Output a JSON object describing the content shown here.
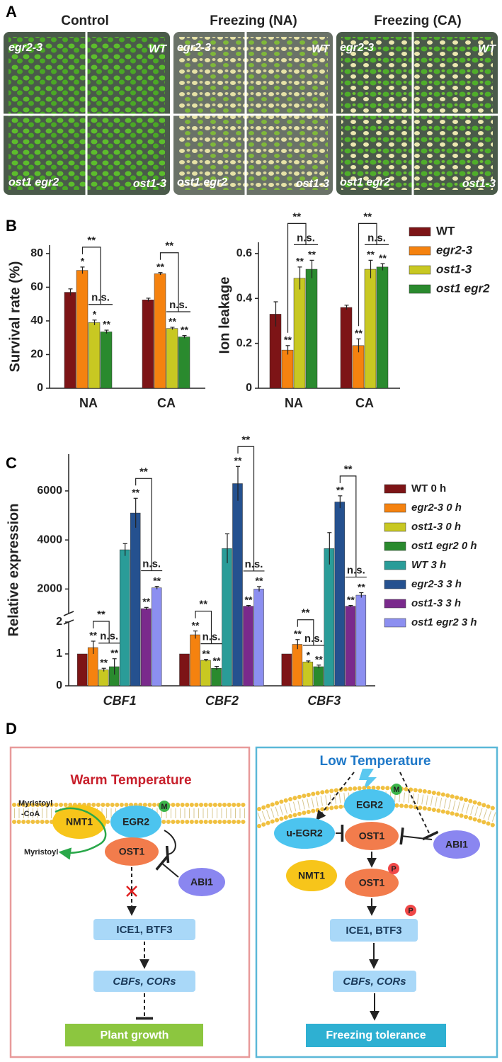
{
  "panel_labels": [
    "A",
    "B",
    "C",
    "D"
  ],
  "panel_a": {
    "columns": [
      "Control",
      "Freezing (NA)",
      "Freezing (CA)"
    ],
    "genotypes": [
      "egr2-3",
      "WT",
      "ost1 egr2",
      "ost1-3"
    ]
  },
  "chart_data": [
    {
      "type": "bar",
      "y_label": "Survival rate (%)",
      "categories": [
        "NA",
        "CA"
      ],
      "ylim": [
        0,
        85
      ],
      "yticks": [
        0,
        20,
        40,
        60,
        80
      ],
      "legend": "right",
      "series": [
        {
          "name": "WT",
          "color": "#7d1416",
          "values": [
            57,
            52.5
          ],
          "errors": [
            2,
            1
          ]
        },
        {
          "name": "egr2-3",
          "color": "#f5820f",
          "values": [
            70,
            68
          ],
          "errors": [
            2,
            0.7
          ],
          "significance": [
            "*",
            "**"
          ]
        },
        {
          "name": "ost1-3",
          "color": "#c8c822",
          "values": [
            39,
            35.5
          ],
          "errors": [
            1.5,
            0.7
          ],
          "significance": [
            "*",
            "**"
          ]
        },
        {
          "name": "ost1 egr2",
          "color": "#2a8a2e",
          "values": [
            33.5,
            30.5
          ],
          "errors": [
            1,
            0.8
          ],
          "significance": [
            "**",
            "**"
          ]
        }
      ],
      "brackets": [
        [
          "**",
          "n.s."
        ],
        [
          "**",
          "n.s."
        ]
      ]
    },
    {
      "type": "bar",
      "y_label": "Ion leakage",
      "categories": [
        "NA",
        "CA"
      ],
      "ylim": [
        0,
        0.65
      ],
      "yticks": [
        0,
        0.2,
        0.4,
        0.6
      ],
      "series": [
        {
          "color": "#7d1416",
          "values": [
            0.33,
            0.36
          ],
          "errors": [
            0.055,
            0.01
          ]
        },
        {
          "color": "#f5820f",
          "values": [
            0.17,
            0.19
          ],
          "errors": [
            0.02,
            0.03
          ],
          "significance": [
            "**",
            "**"
          ]
        },
        {
          "color": "#c8c822",
          "values": [
            0.49,
            0.53
          ],
          "errors": [
            0.05,
            0.04
          ],
          "significance": [
            "**",
            "**"
          ]
        },
        {
          "color": "#2a8a2e",
          "values": [
            0.53,
            0.54
          ],
          "errors": [
            0.04,
            0.015
          ],
          "significance": [
            "**",
            "**"
          ]
        }
      ],
      "brackets": [
        [
          "**",
          "n.s."
        ],
        [
          "**",
          "n.s."
        ]
      ]
    },
    {
      "type": "bar",
      "y_label": "Relative expression",
      "categories": [
        "CBF1",
        "CBF2",
        "CBF3"
      ],
      "ylim": [
        0,
        2
      ],
      "yticks": [
        0,
        1,
        2
      ],
      "ylim_upper": [
        1000,
        7500
      ],
      "yticks_upper": [
        2000,
        4000,
        6000
      ],
      "legend": "right",
      "series": [
        {
          "name": "WT 0 h",
          "color": "#7d1416",
          "values": [
            1,
            1,
            1
          ]
        },
        {
          "name": "egr2-3 0 h",
          "color": "#f5820f",
          "values": [
            1.2,
            1.6,
            1.3
          ],
          "errors": [
            0.2,
            0.12,
            0.15
          ],
          "significance": [
            "**",
            "**",
            "**"
          ]
        },
        {
          "name": "ost1-3 0 h",
          "color": "#c8c822",
          "values": [
            0.5,
            0.8,
            0.75
          ],
          "errors": [
            0.05,
            0.03,
            0.03
          ],
          "significance": [
            "**",
            "**",
            "*"
          ]
        },
        {
          "name": "ost1 egr2 0 h",
          "color": "#2a8a2e",
          "values": [
            0.6,
            0.55,
            0.6
          ],
          "errors": [
            0.25,
            0.06,
            0.05
          ],
          "significance": [
            "**",
            "**",
            "**"
          ]
        },
        {
          "name": "WT 3 h",
          "color": "#2a9c98",
          "values": [
            3600,
            3650,
            3650
          ],
          "errors": [
            250,
            600,
            650
          ]
        },
        {
          "name": "egr2-3 3 h",
          "color": "#25518f",
          "values": [
            5100,
            6300,
            5550
          ],
          "errors": [
            600,
            700,
            250
          ],
          "significance": [
            "**",
            "**",
            "**"
          ]
        },
        {
          "name": "ost1-3 3 h",
          "color": "#7a2a8c",
          "values": [
            1200,
            1300,
            1300
          ],
          "errors": [
            50,
            30,
            30
          ],
          "significance": [
            "**",
            "**",
            "**"
          ]
        },
        {
          "name": "ost1 egr2 3 h",
          "color": "#8c8ff0",
          "values": [
            2050,
            2000,
            1750
          ],
          "errors": [
            60,
            100,
            100
          ],
          "significance": [
            "**",
            "**",
            "**"
          ]
        }
      ],
      "brackets": [
        [
          "**",
          "n.s.",
          "**",
          "n.s."
        ],
        [
          "**",
          "n.s.",
          "**",
          "n.s."
        ],
        [
          "**",
          "n.s.",
          "**",
          "n.s."
        ]
      ]
    }
  ],
  "panel_d": {
    "left": {
      "title": "Warm Temperature",
      "myristoyl_coa": [
        "Myristoyl",
        "-CoA"
      ],
      "nmt1": "NMT1",
      "egr2": "EGR2",
      "m": "M",
      "myristoyl": "Myristoyl",
      "ost1": "OST1",
      "abi1": "ABI1",
      "ice1": "ICE1, BTF3",
      "cbfs": "CBFs, CORs",
      "outcome": "Plant growth"
    },
    "right": {
      "title": "Low Temperature",
      "egr2": "EGR2",
      "m": "M",
      "u_egr2": "u-EGR2",
      "ost1": "OST1",
      "abi1": "ABI1",
      "nmt1": "NMT1",
      "ost1_p": "OST1",
      "p1": "P",
      "ice1": "ICE1, BTF3",
      "p2": "P",
      "cbfs": "CBFs, CORs",
      "outcome": "Freezing tolerance"
    }
  }
}
